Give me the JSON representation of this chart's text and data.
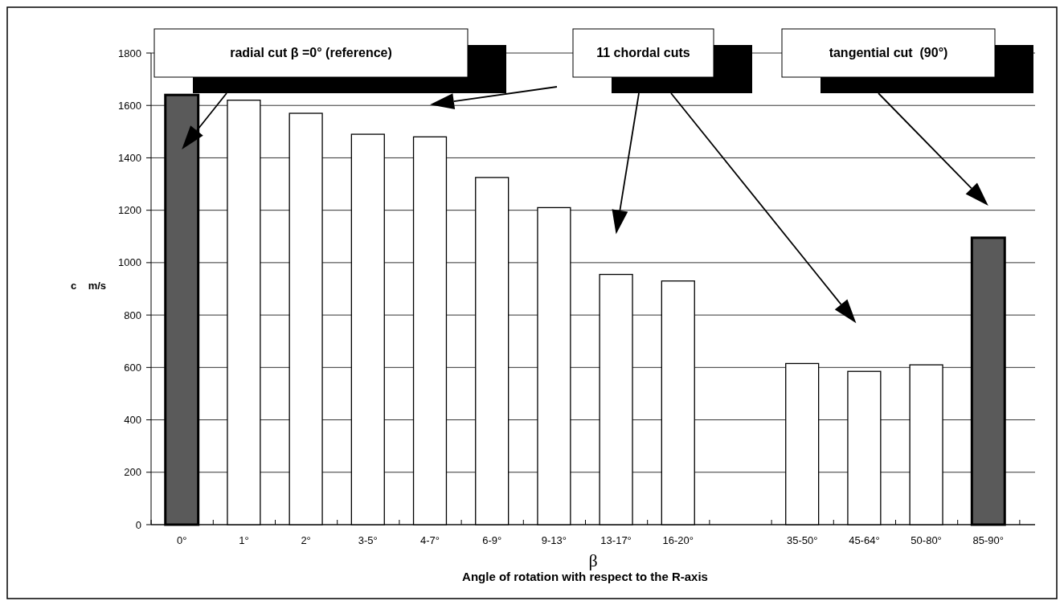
{
  "chart_data": {
    "type": "bar",
    "categories": [
      "0°",
      "1°",
      "2°",
      "3-5°",
      "4-7°",
      "6-9°",
      "9-13°",
      "13-17°",
      "16-20°",
      null,
      "35-50°",
      "45-64°",
      "50-80°",
      "85-90°"
    ],
    "values": [
      1640,
      1620,
      1570,
      1490,
      1480,
      1325,
      1210,
      955,
      930,
      null,
      615,
      585,
      610,
      1095
    ],
    "colors": [
      "#5a5a5a",
      "#ffffff",
      "#ffffff",
      "#ffffff",
      "#ffffff",
      "#ffffff",
      "#ffffff",
      "#ffffff",
      "#ffffff",
      null,
      "#ffffff",
      "#ffffff",
      "#ffffff",
      "#5a5a5a"
    ],
    "ylim": [
      0,
      1800
    ],
    "yticks": [
      0,
      200,
      400,
      600,
      800,
      1000,
      1200,
      1400,
      1600,
      1800
    ],
    "grid": "y",
    "ylabel": "c    m/s",
    "xlabel": "β",
    "annotations": [
      "radial cut β =0° (reference)",
      "11 chordal cuts",
      "tangential cut  (90°)",
      "Angle of rotation with respect to the R-axis"
    ]
  }
}
